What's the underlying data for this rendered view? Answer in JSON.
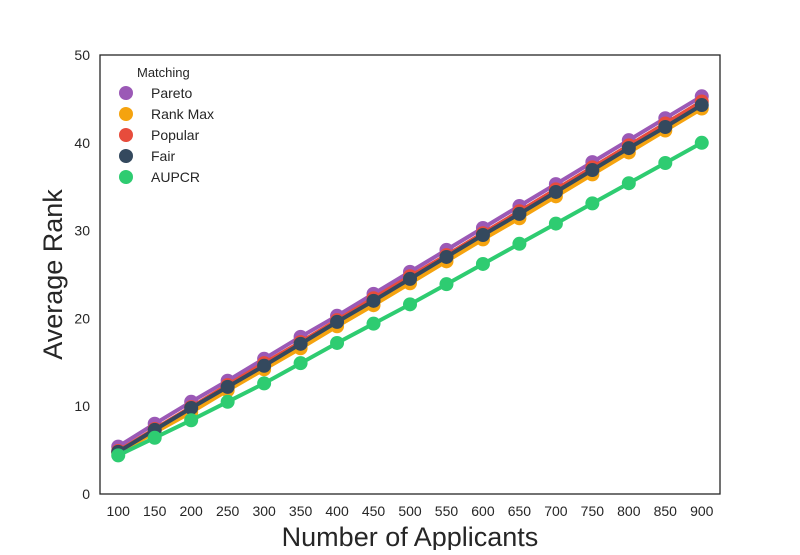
{
  "chart_data": {
    "type": "line",
    "title": "",
    "xlabel": "Number of Applicants",
    "ylabel": "Average Rank",
    "categories": [
      "100",
      "150",
      "200",
      "250",
      "300",
      "350",
      "400",
      "450",
      "500",
      "550",
      "600",
      "650",
      "700",
      "750",
      "800",
      "850",
      "900"
    ],
    "yticks": [
      "0",
      "10",
      "20",
      "30",
      "40",
      "50"
    ],
    "ylim": [
      0,
      50
    ],
    "grid": false,
    "legend": {
      "title": "Matching",
      "position": "top-left"
    },
    "series": [
      {
        "name": "Pareto",
        "color": "#9b59b6",
        "values": [
          5.4,
          8.0,
          10.5,
          12.9,
          15.4,
          17.9,
          20.3,
          22.8,
          25.3,
          27.8,
          30.3,
          32.8,
          35.3,
          37.8,
          40.3,
          42.8,
          45.3
        ]
      },
      {
        "name": "Rank Max",
        "color": "#f5a30f",
        "values": [
          4.7,
          7.0,
          9.3,
          11.8,
          14.2,
          16.6,
          19.1,
          21.5,
          24.0,
          26.5,
          29.0,
          31.4,
          33.9,
          36.4,
          38.9,
          41.4,
          43.9
        ]
      },
      {
        "name": "Popular",
        "color": "#e74c3c",
        "values": [
          4.9,
          7.4,
          9.9,
          12.4,
          14.9,
          17.3,
          19.8,
          22.3,
          24.8,
          27.2,
          29.7,
          32.2,
          34.7,
          37.2,
          39.7,
          42.2,
          44.7
        ]
      },
      {
        "name": "Fair",
        "color": "#34495e",
        "values": [
          4.8,
          7.3,
          9.8,
          12.2,
          14.6,
          17.1,
          19.6,
          22.0,
          24.5,
          27.0,
          29.5,
          31.9,
          34.4,
          36.9,
          39.4,
          41.8,
          44.3
        ]
      },
      {
        "name": "AUPCR",
        "color": "#2ecc71",
        "values": [
          4.4,
          6.4,
          8.4,
          10.5,
          12.6,
          14.9,
          17.2,
          19.4,
          21.6,
          23.9,
          26.2,
          28.5,
          30.8,
          33.1,
          35.4,
          37.7,
          40.0
        ]
      }
    ]
  }
}
